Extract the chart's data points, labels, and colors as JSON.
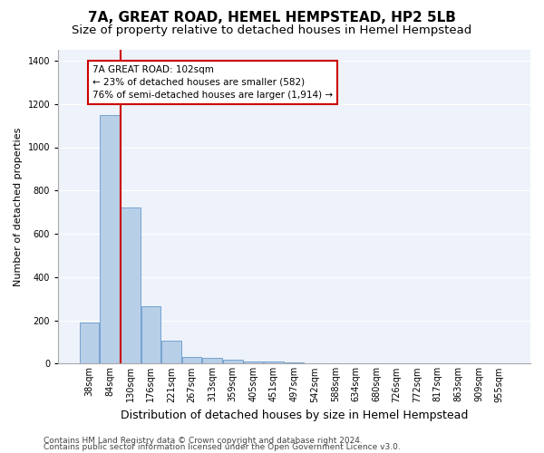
{
  "title1": "7A, GREAT ROAD, HEMEL HEMPSTEAD, HP2 5LB",
  "title2": "Size of property relative to detached houses in Hemel Hempstead",
  "xlabel": "Distribution of detached houses by size in Hemel Hempstead",
  "ylabel": "Number of detached properties",
  "footer1": "Contains HM Land Registry data © Crown copyright and database right 2024.",
  "footer2": "Contains public sector information licensed under the Open Government Licence v3.0.",
  "categories": [
    "38sqm",
    "84sqm",
    "130sqm",
    "176sqm",
    "221sqm",
    "267sqm",
    "313sqm",
    "359sqm",
    "405sqm",
    "451sqm",
    "497sqm",
    "542sqm",
    "588sqm",
    "634sqm",
    "680sqm",
    "726sqm",
    "772sqm",
    "817sqm",
    "863sqm",
    "909sqm",
    "955sqm"
  ],
  "values": [
    190,
    1150,
    720,
    265,
    107,
    30,
    25,
    18,
    10,
    12,
    5,
    3,
    2,
    1,
    1,
    0,
    0,
    0,
    0,
    0,
    0
  ],
  "bar_color": "#b8cfe8",
  "bar_edge_color": "#6699cc",
  "vline_color": "#cc0000",
  "vline_x_index": 1.5,
  "annotation_line1": "7A GREAT ROAD: 102sqm",
  "annotation_line2": "← 23% of detached houses are smaller (582)",
  "annotation_line3": "76% of semi-detached houses are larger (1,914) →",
  "annotation_box_color": "white",
  "annotation_box_edge": "#cc0000",
  "ylim": [
    0,
    1450
  ],
  "yticks": [
    0,
    200,
    400,
    600,
    800,
    1000,
    1200,
    1400
  ],
  "bg_color": "#eef2fa",
  "grid_color": "white",
  "title1_fontsize": 11,
  "title2_fontsize": 9.5,
  "xlabel_fontsize": 9,
  "ylabel_fontsize": 8,
  "tick_fontsize": 7,
  "annotation_fontsize": 7.5,
  "footer_fontsize": 6.5
}
